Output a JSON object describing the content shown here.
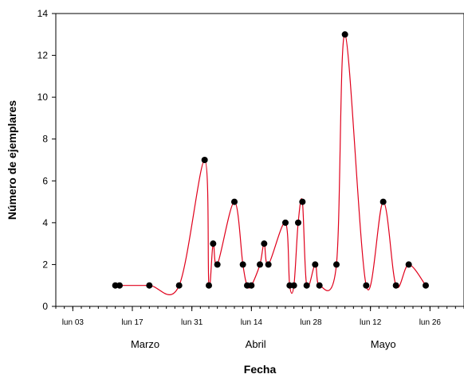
{
  "chart_data": {
    "type": "line",
    "title": "",
    "xlabel": "Fecha",
    "ylabel": "Número de ejemplares",
    "ylim": [
      0,
      14
    ],
    "yticks": [
      0,
      2,
      4,
      6,
      8,
      10,
      12,
      14
    ],
    "xlim": [
      "2008-02-28",
      "2008-06-03"
    ],
    "x_major_ticks": [
      {
        "date": "2008-03-03",
        "label": "lun 03"
      },
      {
        "date": "2008-03-17",
        "label": "lun 17"
      },
      {
        "date": "2008-03-31",
        "label": "lun 31"
      },
      {
        "date": "2008-04-14",
        "label": "lun 14"
      },
      {
        "date": "2008-04-28",
        "label": "lun 28"
      },
      {
        "date": "2008-05-12",
        "label": "lun 12"
      },
      {
        "date": "2008-05-26",
        "label": "lun 26"
      }
    ],
    "month_labels": [
      {
        "label": "Marzo",
        "date": "2008-03-20"
      },
      {
        "label": "Abril",
        "date": "2008-04-15"
      },
      {
        "label": "Mayo",
        "date": "2008-05-15"
      }
    ],
    "grid": false,
    "line_color": "#e0001b",
    "marker_color": "#000000",
    "series": [
      {
        "x": [
          "2008-03-13",
          "2008-03-14",
          "2008-03-21",
          "2008-03-28",
          "2008-04-03",
          "2008-04-04",
          "2008-04-05",
          "2008-04-06",
          "2008-04-10",
          "2008-04-12",
          "2008-04-13",
          "2008-04-14",
          "2008-04-16",
          "2008-04-17",
          "2008-04-18",
          "2008-04-22",
          "2008-04-23",
          "2008-04-24",
          "2008-04-25",
          "2008-04-26",
          "2008-04-27",
          "2008-04-29",
          "2008-04-30",
          "2008-05-04",
          "2008-05-06",
          "2008-05-11",
          "2008-05-15",
          "2008-05-18",
          "2008-05-21",
          "2008-05-25"
        ],
        "values": [
          1,
          1,
          1,
          1,
          7,
          1,
          3,
          2,
          5,
          2,
          1,
          1,
          2,
          3,
          2,
          4,
          1,
          1,
          4,
          5,
          1,
          2,
          1,
          2,
          13,
          1,
          5,
          1,
          2,
          1
        ]
      }
    ]
  }
}
